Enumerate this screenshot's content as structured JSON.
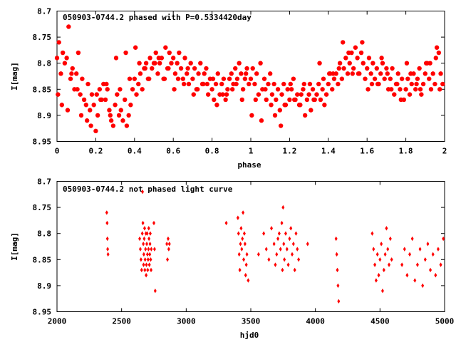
{
  "chart_data": [
    {
      "type": "scatter",
      "title": "050903-0744.2 phased with P=0.5334420day",
      "xlabel": "phase",
      "ylabel": "I[mag]",
      "xlim": [
        0,
        2
      ],
      "ylim": [
        8.7,
        8.95
      ],
      "y_inverted": true,
      "xticks": [
        "0",
        "0.2",
        "0.4",
        "0.6",
        "0.8",
        "1",
        "1.2",
        "1.4",
        "1.6",
        "1.8",
        "2"
      ],
      "yticks": [
        "8.7",
        "8.75",
        "8.8",
        "8.85",
        "8.9",
        "8.95"
      ],
      "marker_color": "#ff0000",
      "grid": false,
      "x": [
        0.0,
        0.01,
        0.02,
        0.03,
        0.04,
        0.05,
        0.06,
        0.07,
        0.08,
        0.09,
        0.1,
        0.11,
        0.12,
        0.13,
        0.14,
        0.15,
        0.16,
        0.17,
        0.18,
        0.19,
        0.2,
        0.21,
        0.22,
        0.23,
        0.24,
        0.25,
        0.26,
        0.27,
        0.28,
        0.29,
        0.3,
        0.31,
        0.32,
        0.33,
        0.34,
        0.35,
        0.36,
        0.37,
        0.38,
        0.39,
        0.4,
        0.41,
        0.42,
        0.43,
        0.44,
        0.45,
        0.46,
        0.47,
        0.48,
        0.49,
        0.5,
        0.51,
        0.52,
        0.53,
        0.54,
        0.55,
        0.56,
        0.57,
        0.58,
        0.59,
        0.6,
        0.61,
        0.62,
        0.63,
        0.64,
        0.65,
        0.66,
        0.67,
        0.68,
        0.69,
        0.7,
        0.71,
        0.72,
        0.73,
        0.74,
        0.75,
        0.76,
        0.77,
        0.78,
        0.79,
        0.8,
        0.81,
        0.82,
        0.83,
        0.84,
        0.85,
        0.86,
        0.87,
        0.88,
        0.89,
        0.9,
        0.91,
        0.92,
        0.93,
        0.94,
        0.95,
        0.96,
        0.97,
        0.98,
        0.99,
        1.0,
        1.01,
        1.02,
        1.03,
        1.04,
        1.05,
        1.06,
        1.07,
        1.08,
        1.09,
        1.1,
        1.11,
        1.12,
        1.13,
        1.14,
        1.15,
        1.16,
        1.17,
        1.18,
        1.19,
        1.2,
        1.21,
        1.22,
        1.23,
        1.24,
        1.25,
        1.26,
        1.27,
        1.28,
        1.29,
        1.3,
        1.31,
        1.32,
        1.33,
        1.34,
        1.35,
        1.36,
        1.37,
        1.38,
        1.39,
        1.4,
        1.41,
        1.42,
        1.43,
        1.44,
        1.45,
        1.46,
        1.47,
        1.48,
        1.49,
        1.5,
        1.51,
        1.52,
        1.53,
        1.54,
        1.55,
        1.56,
        1.57,
        1.58,
        1.59,
        1.6,
        1.61,
        1.62,
        1.63,
        1.64,
        1.65,
        1.66,
        1.67,
        1.68,
        1.69,
        1.7,
        1.71,
        1.72,
        1.73,
        1.74,
        1.75,
        1.76,
        1.77,
        1.78,
        1.79,
        1.8,
        1.81,
        1.82,
        1.83,
        1.84,
        1.85,
        1.86,
        1.87,
        1.88,
        1.89,
        1.9,
        1.91,
        1.92,
        1.93,
        1.94,
        1.95,
        1.96,
        1.97,
        1.98,
        1.99,
        0.005,
        0.055,
        0.105,
        0.155,
        0.205,
        0.255,
        0.305,
        0.355,
        0.405,
        0.455,
        0.505,
        0.555,
        0.605,
        0.655,
        0.705,
        0.755,
        0.805,
        0.855,
        0.905,
        0.955,
        1.005,
        1.055,
        1.105,
        1.155,
        1.205,
        1.255,
        1.305,
        1.355,
        1.405,
        1.455,
        1.505,
        1.555,
        1.605,
        1.655,
        1.705,
        1.755,
        1.805,
        1.855,
        1.905,
        1.955,
        0.025,
        0.075,
        0.125,
        0.175,
        0.225,
        0.275,
        0.325,
        0.375,
        0.425,
        0.475,
        0.525,
        0.575,
        0.625,
        0.675,
        0.725,
        0.775,
        0.825,
        0.875,
        0.925,
        0.975,
        1.025,
        1.075,
        1.125,
        1.175,
        1.225,
        1.275,
        1.325,
        1.375,
        1.425,
        1.475,
        1.525,
        1.575,
        1.625,
        1.675,
        1.725,
        1.775,
        1.825,
        1.875,
        1.925,
        1.975
      ],
      "y": [
        8.79,
        8.76,
        8.82,
        8.78,
        8.8,
        8.79,
        8.73,
        8.83,
        8.81,
        8.85,
        8.82,
        8.78,
        8.86,
        8.83,
        8.87,
        8.88,
        8.84,
        8.89,
        8.86,
        8.88,
        8.93,
        8.9,
        8.85,
        8.87,
        8.84,
        8.87,
        8.85,
        8.89,
        8.91,
        8.92,
        8.88,
        8.86,
        8.9,
        8.89,
        8.91,
        8.87,
        8.92,
        8.9,
        8.88,
        8.85,
        8.83,
        8.86,
        8.84,
        8.82,
        8.85,
        8.81,
        8.8,
        8.83,
        8.79,
        8.81,
        8.8,
        8.78,
        8.82,
        8.8,
        8.79,
        8.83,
        8.77,
        8.81,
        8.78,
        8.8,
        8.79,
        8.82,
        8.8,
        8.78,
        8.81,
        8.83,
        8.79,
        8.82,
        8.84,
        8.8,
        8.83,
        8.81,
        8.85,
        8.82,
        8.8,
        8.84,
        8.82,
        8.81,
        8.86,
        8.83,
        8.85,
        8.87,
        8.84,
        8.82,
        8.86,
        8.84,
        8.83,
        8.87,
        8.85,
        8.83,
        8.82,
        8.84,
        8.81,
        8.83,
        8.8,
        8.82,
        8.85,
        8.83,
        8.81,
        8.84,
        8.83,
        8.81,
        8.84,
        8.82,
        8.86,
        8.8,
        8.85,
        8.83,
        8.87,
        8.84,
        8.82,
        8.86,
        8.84,
        8.87,
        8.85,
        8.89,
        8.86,
        8.84,
        8.88,
        8.85,
        8.87,
        8.85,
        8.83,
        8.87,
        8.86,
        8.88,
        8.86,
        8.85,
        8.9,
        8.87,
        8.86,
        8.89,
        8.85,
        8.87,
        8.86,
        8.84,
        8.87,
        8.85,
        8.88,
        8.86,
        8.84,
        8.82,
        8.85,
        8.83,
        8.82,
        8.84,
        8.8,
        8.83,
        8.81,
        8.79,
        8.82,
        8.8,
        8.78,
        8.81,
        8.77,
        8.79,
        8.82,
        8.78,
        8.8,
        8.83,
        8.81,
        8.79,
        8.82,
        8.8,
        8.83,
        8.81,
        8.84,
        8.82,
        8.8,
        8.83,
        8.81,
        8.85,
        8.83,
        8.81,
        8.86,
        8.84,
        8.82,
        8.85,
        8.83,
        8.87,
        8.85,
        8.83,
        8.86,
        8.84,
        8.82,
        8.85,
        8.83,
        8.81,
        8.86,
        8.84,
        8.82,
        8.8,
        8.83,
        8.85,
        8.82,
        8.84,
        8.77,
        8.78,
        8.82,
        8.84,
        8.86,
        8.89,
        8.85,
        8.91,
        8.86,
        8.84,
        8.79,
        8.78,
        8.77,
        8.81,
        8.8,
        8.83,
        8.85,
        8.84,
        8.86,
        8.84,
        8.83,
        8.86,
        8.85,
        8.87,
        8.9,
        8.91,
        8.88,
        8.92,
        8.84,
        8.88,
        8.84,
        8.8,
        8.82,
        8.81,
        8.78,
        8.82,
        8.85,
        8.84,
        8.82,
        8.84,
        8.8,
        8.84,
        8.8,
        8.79,
        8.88,
        8.82,
        8.9,
        8.92,
        8.87,
        8.9,
        8.85,
        8.83,
        8.8,
        8.83,
        8.79,
        8.81,
        8.83,
        8.81,
        8.85,
        8.84,
        8.88,
        8.86,
        8.84,
        8.82,
        8.87,
        8.85,
        8.9,
        8.88,
        8.87,
        8.84,
        8.87,
        8.83,
        8.82,
        8.76,
        8.82,
        8.76,
        8.84,
        8.79,
        8.85,
        8.87,
        8.82,
        8.85,
        8.8,
        8.85
      ]
    },
    {
      "type": "scatter",
      "title": "050903-0744.2 not phased light curve",
      "xlabel": "hjd0",
      "ylabel": "I[mag]",
      "xlim": [
        2000,
        5000
      ],
      "ylim": [
        8.7,
        8.95
      ],
      "y_inverted": true,
      "xticks": [
        "2000",
        "2500",
        "3000",
        "3500",
        "4000",
        "4500",
        "5000"
      ],
      "yticks": [
        "8.7",
        "8.75",
        "8.8",
        "8.85",
        "8.9",
        "8.95"
      ],
      "marker_color": "#ff0000",
      "grid": false,
      "x": [
        2385,
        2388,
        2390,
        2392,
        2395,
        2640,
        2645,
        2650,
        2655,
        2660,
        2662,
        2665,
        2668,
        2670,
        2672,
        2675,
        2678,
        2680,
        2682,
        2685,
        2688,
        2690,
        2692,
        2695,
        2698,
        2700,
        2702,
        2705,
        2708,
        2710,
        2712,
        2715,
        2718,
        2720,
        2722,
        2725,
        2728,
        2730,
        2750,
        2755,
        2760,
        2850,
        2855,
        2860,
        2865,
        2870,
        3310,
        3400,
        3405,
        3410,
        3415,
        3420,
        3425,
        3430,
        3435,
        3440,
        3445,
        3450,
        3455,
        3460,
        3465,
        3470,
        3480,
        3560,
        3600,
        3620,
        3640,
        3660,
        3680,
        3690,
        3700,
        3710,
        3720,
        3730,
        3740,
        3745,
        3750,
        3755,
        3760,
        3770,
        3780,
        3790,
        3800,
        3810,
        3820,
        3830,
        3840,
        3850,
        3860,
        3870,
        3940,
        4160,
        4165,
        4170,
        4175,
        4180,
        4440,
        4450,
        4460,
        4470,
        4480,
        4490,
        4500,
        4510,
        4520,
        4530,
        4540,
        4550,
        4560,
        4570,
        4580,
        4590,
        4670,
        4690,
        4710,
        4730,
        4750,
        4770,
        4790,
        4810,
        4830,
        4850,
        4870,
        4890,
        4910,
        4930,
        4950,
        4970,
        4990
      ],
      "y": [
        8.76,
        8.78,
        8.81,
        8.83,
        8.84,
        8.81,
        8.83,
        8.85,
        8.87,
        8.8,
        8.72,
        8.78,
        8.82,
        8.86,
        8.84,
        8.81,
        8.79,
        8.87,
        8.85,
        8.83,
        8.8,
        8.88,
        8.86,
        8.82,
        8.8,
        8.84,
        8.87,
        8.85,
        8.83,
        8.79,
        8.81,
        8.86,
        8.84,
        8.82,
        8.8,
        8.85,
        8.87,
        8.83,
        8.78,
        8.83,
        8.91,
        8.82,
        8.85,
        8.81,
        8.83,
        8.82,
        8.78,
        8.77,
        8.8,
        8.84,
        8.87,
        8.82,
        8.79,
        8.83,
        8.81,
        8.76,
        8.85,
        8.8,
        8.82,
        8.88,
        8.86,
        8.84,
        8.89,
        8.84,
        8.8,
        8.83,
        8.85,
        8.79,
        8.82,
        8.86,
        8.84,
        8.81,
        8.8,
        8.83,
        8.78,
        8.87,
        8.75,
        8.82,
        8.85,
        8.8,
        8.83,
        8.86,
        8.81,
        8.79,
        8.84,
        8.82,
        8.87,
        8.8,
        8.83,
        8.85,
        8.82,
        8.81,
        8.84,
        8.87,
        8.9,
        8.93,
        8.8,
        8.83,
        8.86,
        8.89,
        8.84,
        8.88,
        8.85,
        8.82,
        8.91,
        8.87,
        8.84,
        8.79,
        8.83,
        8.86,
        8.81,
        8.85,
        8.86,
        8.83,
        8.88,
        8.84,
        8.81,
        8.89,
        8.86,
        8.83,
        8.9,
        8.85,
        8.82,
        8.87,
        8.84,
        8.88,
        8.83,
        8.86,
        8.81
      ]
    }
  ]
}
